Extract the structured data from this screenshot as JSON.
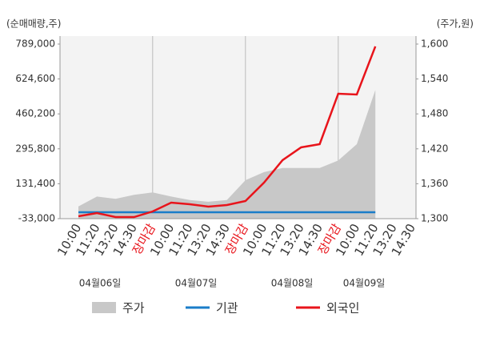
{
  "chart_data": {
    "type": "line",
    "y_label": "(순매매량,주)",
    "y2_label": "(주가,원)",
    "categories": [
      "10:00",
      "11:20",
      "13:20",
      "14:30",
      "장마감",
      "10:00",
      "11:20",
      "13:20",
      "14:30",
      "장마감",
      "10:00",
      "11:20",
      "13:20",
      "14:30",
      "장마감",
      "10:00",
      "11:20",
      "13:20",
      "14:30"
    ],
    "day_labels": [
      "04월06일",
      "04월07일",
      "04월08일",
      "04월09일"
    ],
    "ylim": [
      -33000,
      789000
    ],
    "yticks": [
      {
        "value": -33000,
        "label": "-33,000"
      },
      {
        "value": 131400,
        "label": "131,400"
      },
      {
        "value": 295800,
        "label": "295,800"
      },
      {
        "value": 460200,
        "label": "460,200"
      },
      {
        "value": 624600,
        "label": "624,600"
      },
      {
        "value": 789000,
        "label": "789,000"
      }
    ],
    "y2lim": [
      1300,
      1600
    ],
    "y2ticks": [
      {
        "value": 1300,
        "label": "1,300"
      },
      {
        "value": 1360,
        "label": "1,360"
      },
      {
        "value": 1420,
        "label": "1,420"
      },
      {
        "value": 1480,
        "label": "1,480"
      },
      {
        "value": 1540,
        "label": "1,540"
      },
      {
        "value": 1600,
        "label": "1,600"
      }
    ],
    "series": [
      {
        "name": "주가",
        "color": "#c8c8c8",
        "kind": "area",
        "axis": "y2",
        "values": [
          1321,
          1338,
          1334,
          1341,
          1345,
          1338,
          1332,
          1329,
          1332,
          1366,
          1380,
          1387,
          1387,
          1387,
          1400,
          1428,
          1521,
          null,
          null
        ]
      },
      {
        "name": "기관",
        "color": "#1a7dc9",
        "kind": "line",
        "values": [
          -3000,
          -3000,
          -3000,
          -3000,
          -3000,
          -3000,
          -3000,
          -3000,
          -3000,
          -3000,
          -3000,
          -3000,
          -3000,
          -3000,
          -3000,
          -3000,
          -3000,
          null,
          null
        ]
      },
      {
        "name": "외국인",
        "color": "#e8141b",
        "kind": "line",
        "values": [
          -21700,
          -6600,
          -25500,
          -25500,
          900,
          42400,
          34900,
          23600,
          31100,
          50000,
          136700,
          242300,
          302600,
          317700,
          555300,
          551500,
          777800,
          null,
          null
        ]
      }
    ]
  }
}
